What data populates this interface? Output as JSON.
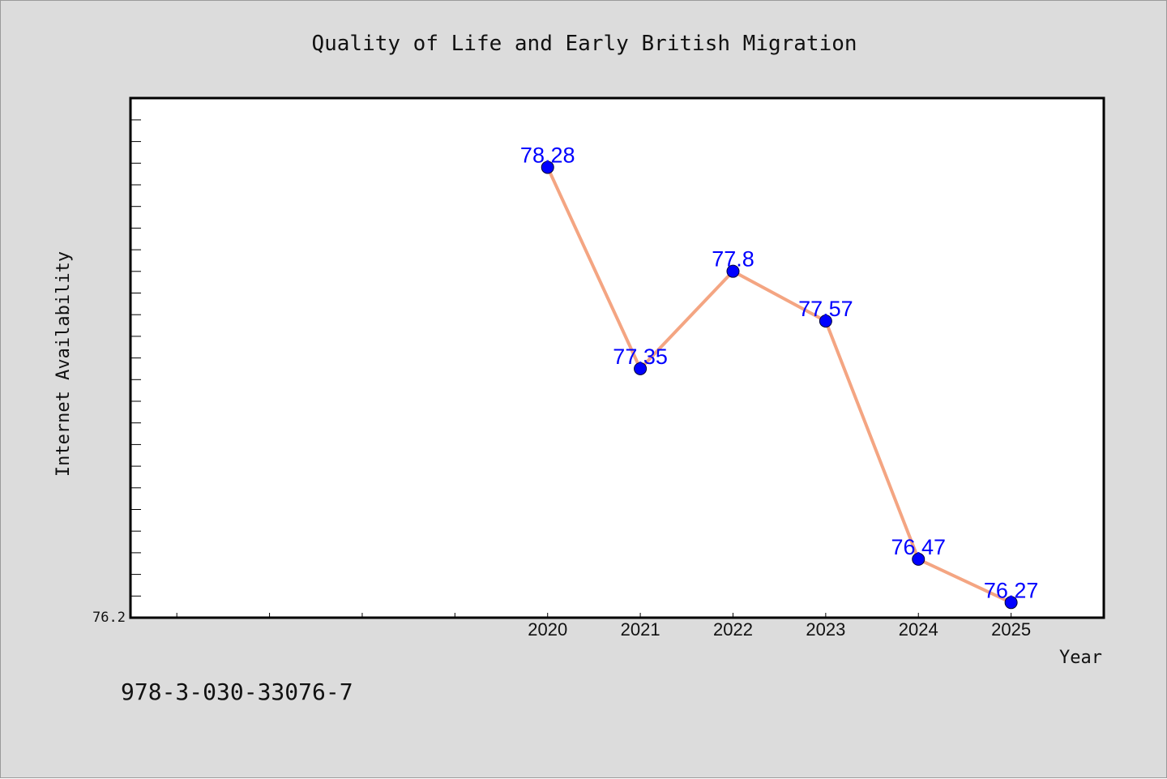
{
  "chart_data": {
    "type": "line",
    "title": "Quality of Life and Early British Migration",
    "xlabel": "Year",
    "ylabel": "Internet Availability",
    "x": [
      "2020",
      "2021",
      "2022",
      "2023",
      "2024",
      "2025"
    ],
    "series": [
      {
        "values": [
          78.28,
          77.35,
          77.8,
          77.57,
          76.47,
          76.27
        ]
      }
    ],
    "data_labels": [
      "78.28",
      "77.35",
      "77.8",
      "77.57",
      "76.47",
      "76.27"
    ],
    "y_tick_labels": [
      "76.2"
    ],
    "ylim": [
      76.2,
      78.6
    ],
    "x_range_years": [
      2015.5,
      2026
    ],
    "grid": false,
    "legend": "none",
    "colors": {
      "line": "#f4a582",
      "marker": "#0000ff",
      "data_label": "#0000ff",
      "background": "#dcdcdc",
      "plot_area": "#ffffff"
    }
  },
  "footer": {
    "isbn": "978-3-030-33076-7"
  }
}
